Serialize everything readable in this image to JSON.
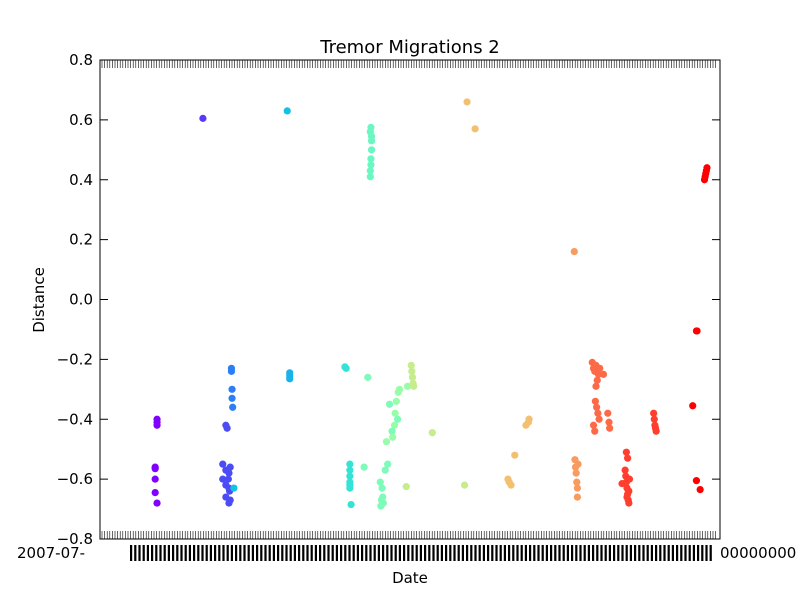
{
  "chart_data": {
    "type": "scatter",
    "title": "Tremor Migrations 2",
    "xlabel": "Date",
    "ylabel": "Distance",
    "ylim": [
      -0.8,
      0.8
    ],
    "yticks": [
      "0.8",
      "0.6",
      "0.4",
      "0.2",
      "0.0",
      "−0.2",
      "−0.4",
      "−0.6",
      "−0.8"
    ],
    "xtick_labels_left": "2007-07-",
    "xtick_labels_right": "00000000",
    "grid": false,
    "legend": "none",
    "colormap": "rainbow",
    "note_x": "x positions are unlabeled (overlapping date tick labels); x values below are relative positions 0-100 across the plotted range",
    "series": [
      {
        "color": "#8000ff",
        "x": [
          8.9,
          8.9,
          8.9,
          8.9,
          9.2,
          9.2,
          9.2,
          9.2
        ],
        "y": [
          -0.56,
          -0.565,
          -0.6,
          -0.645,
          -0.68,
          -0.4,
          -0.41,
          -0.42
        ]
      },
      {
        "color": "#5a38f8",
        "x": [
          16.6
        ],
        "y": [
          0.605
        ]
      },
      {
        "color": "#4c4cf4",
        "x": [
          19.8,
          19.8,
          20.3,
          20.3,
          20.3,
          20.8,
          20.8,
          20.8,
          20.3,
          20.5,
          20.7,
          20.9,
          21.0,
          21.0
        ],
        "y": [
          -0.55,
          -0.6,
          -0.57,
          -0.62,
          -0.66,
          -0.58,
          -0.63,
          -0.68,
          -0.42,
          -0.43,
          -0.6,
          -0.64,
          -0.67,
          -0.56
        ]
      },
      {
        "color": "#2c7ef7",
        "x": [
          21.2,
          21.2,
          21.3,
          21.3,
          21.4
        ],
        "y": [
          -0.23,
          -0.24,
          -0.3,
          -0.33,
          -0.36
        ]
      },
      {
        "color": "#13c1e6",
        "x": [
          21.6,
          30.2
        ],
        "y": [
          -0.63,
          0.63
        ]
      },
      {
        "color": "#18b3ea",
        "x": [
          30.6,
          30.6,
          30.6
        ],
        "y": [
          -0.245,
          -0.255,
          -0.265
        ]
      },
      {
        "color": "#35e2d6",
        "x": [
          39.5,
          39.7,
          40.3,
          40.3,
          40.3,
          40.3,
          40.3,
          40.3,
          40.5
        ],
        "y": [
          -0.225,
          -0.23,
          -0.55,
          -0.57,
          -0.59,
          -0.61,
          -0.62,
          -0.63,
          -0.685
        ]
      },
      {
        "color": "#6af7c1",
        "x": [
          43.6,
          43.6,
          43.7,
          43.7,
          43.8,
          43.8,
          43.6,
          43.7,
          43.8
        ],
        "y": [
          0.41,
          0.43,
          0.45,
          0.47,
          0.5,
          0.53,
          0.56,
          0.575,
          0.545
        ]
      },
      {
        "color": "#7dfbb8",
        "x": [
          42.6,
          43.2,
          45.2,
          45.5,
          45.6,
          45.7,
          45.3,
          45.4,
          46.0,
          46.4,
          47.1,
          48.0,
          46.7
        ],
        "y": [
          -0.56,
          -0.26,
          -0.61,
          -0.63,
          -0.66,
          -0.68,
          -0.69,
          -0.67,
          -0.57,
          -0.55,
          -0.44,
          -0.4,
          -0.35
        ]
      },
      {
        "color": "#98fda8",
        "x": [
          47.2,
          47.5,
          47.6,
          47.8,
          48.1,
          48.3,
          49.6,
          46.2
        ],
        "y": [
          -0.46,
          -0.42,
          -0.38,
          -0.34,
          -0.31,
          -0.3,
          -0.29,
          -0.475
        ]
      },
      {
        "color": "#c6ec8b",
        "x": [
          49.4,
          50.2,
          50.3,
          50.4,
          50.5,
          50.6,
          53.6,
          58.8
        ],
        "y": [
          -0.625,
          -0.22,
          -0.24,
          -0.26,
          -0.28,
          -0.29,
          -0.445,
          -0.62
        ]
      },
      {
        "color": "#f2c070",
        "x": [
          59.2,
          60.5,
          69.2,
          65.8,
          66.0,
          66.3,
          66.9,
          68.7,
          69.1,
          69.2
        ],
        "y": [
          0.66,
          0.57,
          -0.4,
          -0.6,
          -0.61,
          -0.62,
          -0.52,
          -0.42,
          -0.41,
          -0.4
        ]
      },
      {
        "color": "#f99a5e",
        "x": [
          76.5,
          76.6,
          76.7,
          76.8,
          76.9,
          77.0,
          77.0,
          77.1
        ],
        "y": [
          0.16,
          -0.535,
          -0.56,
          -0.58,
          -0.61,
          -0.63,
          -0.66,
          -0.55
        ]
      },
      {
        "color": "#fd6a48",
        "x": [
          79.4,
          79.6,
          79.8,
          80.0,
          80.2,
          80.4,
          80.6,
          79.9,
          80.1,
          80.3,
          80.5,
          79.6,
          79.8,
          80.0,
          80.2,
          81.2,
          81.9,
          82.1,
          82.2
        ],
        "y": [
          -0.21,
          -0.23,
          -0.24,
          -0.22,
          -0.235,
          -0.25,
          -0.23,
          -0.34,
          -0.36,
          -0.38,
          -0.4,
          -0.42,
          -0.44,
          -0.29,
          -0.27,
          -0.25,
          -0.38,
          -0.41,
          -0.43
        ]
      },
      {
        "color": "#ff3e2f",
        "x": [
          84.2,
          84.7,
          84.8,
          84.9,
          85.0,
          85.1,
          85.2,
          85.3,
          85.4,
          84.9,
          85.1,
          85.3,
          85.0,
          89.3,
          89.4,
          89.5,
          89.6,
          89.7
        ],
        "y": [
          -0.615,
          -0.57,
          -0.59,
          -0.61,
          -0.63,
          -0.65,
          -0.67,
          -0.68,
          -0.6,
          -0.51,
          -0.53,
          -0.64,
          -0.66,
          -0.38,
          -0.4,
          -0.42,
          -0.43,
          -0.44
        ]
      },
      {
        "color": "#ff0000",
        "x": [
          95.6,
          96.2,
          96.8,
          96.2,
          96.3,
          97.5,
          97.6,
          97.7,
          97.8,
          97.9
        ],
        "y": [
          -0.355,
          -0.605,
          -0.635,
          -0.105,
          -0.105,
          0.4,
          0.41,
          0.42,
          0.43,
          0.44
        ]
      }
    ]
  }
}
